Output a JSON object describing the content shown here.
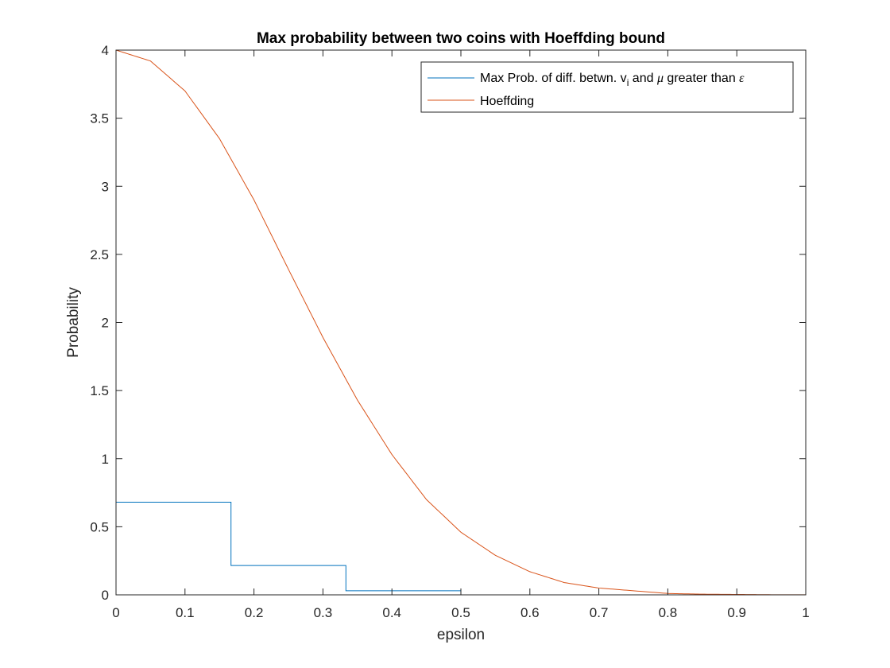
{
  "chart_data": {
    "type": "line",
    "title": "Max probability between two coins with Hoeffding bound",
    "xlabel": "epsilon",
    "ylabel": "Probability",
    "xlim": [
      0,
      1
    ],
    "ylim": [
      0,
      4
    ],
    "xticks": [
      "0",
      "0.1",
      "0.2",
      "0.3",
      "0.4",
      "0.5",
      "0.6",
      "0.7",
      "0.8",
      "0.9",
      "1"
    ],
    "yticks": [
      "0",
      "0.5",
      "1",
      "1.5",
      "2",
      "2.5",
      "3",
      "3.5",
      "4"
    ],
    "grid": false,
    "legend_placement": "top-right",
    "series": [
      {
        "name": "Max Prob. of diff. betwn. v_i and μ greater than ε",
        "legend_parts": {
          "pre": "Max Prob. of diff. betwn. v",
          "sub": "i",
          "mid": " and ",
          "mu": "μ",
          "post": " greater than ",
          "eps": "ε"
        },
        "color": "#0072BD",
        "style": "step",
        "x": [
          0,
          0.1667,
          0.1667,
          0.3333,
          0.3333,
          0.5,
          0.5,
          1
        ],
        "y": [
          0.68,
          0.68,
          0.215,
          0.215,
          0.03,
          0.03,
          0,
          0
        ]
      },
      {
        "name": "Hoeffding",
        "color": "#D95319",
        "style": "line",
        "x": [
          0,
          0.05,
          0.1,
          0.15,
          0.2,
          0.25,
          0.3,
          0.35,
          0.4,
          0.45,
          0.5,
          0.55,
          0.6,
          0.65,
          0.7,
          0.75,
          0.8,
          0.85,
          0.9,
          0.95,
          1
        ],
        "y": [
          4,
          3.92,
          3.7,
          3.35,
          2.9,
          2.39,
          1.89,
          1.43,
          1.03,
          0.7,
          0.46,
          0.29,
          0.17,
          0.09,
          0.05,
          0.03,
          0.01,
          0.005,
          0.003,
          0.001,
          0.0005
        ]
      }
    ]
  }
}
